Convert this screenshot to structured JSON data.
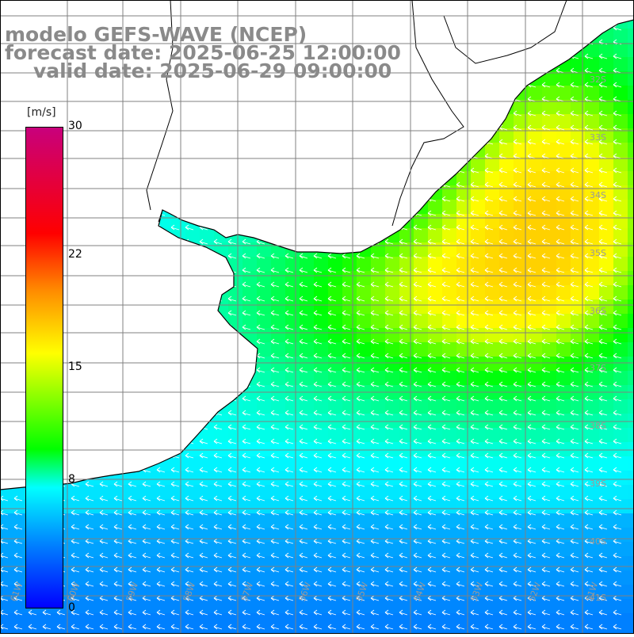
{
  "title": {
    "line1": "modelo GEFS-WAVE (NCEP)",
    "line2": "forecast date: 2025-06-25 12:00:00",
    "line3": "valid date: 2025-06-29 09:00:00"
  },
  "legend": {
    "unit": "[m/s]",
    "ticks": [
      "30",
      "22",
      "15",
      "8",
      "0"
    ],
    "tick_values": [
      30,
      22,
      15,
      8,
      0
    ],
    "colors": [
      "#0000ff",
      "#0080ff",
      "#00ffff",
      "#00ff00",
      "#ffff00",
      "#ff8c00",
      "#ff0000",
      "#c8007c"
    ]
  },
  "map": {
    "lat_labels": [
      "32S",
      "33S",
      "34S",
      "35S",
      "36S",
      "37S",
      "38S",
      "39S",
      "40S",
      "41S"
    ],
    "lon_labels": [
      "61W",
      "60W",
      "59W",
      "58W",
      "57W",
      "56W",
      "55W",
      "54W",
      "53W",
      "52W",
      "51W"
    ],
    "land_color": "#ffffff",
    "grid_color": "#808080",
    "coast_color": "#000000",
    "wind_direction": "from east-northeast",
    "grid": "on"
  }
}
